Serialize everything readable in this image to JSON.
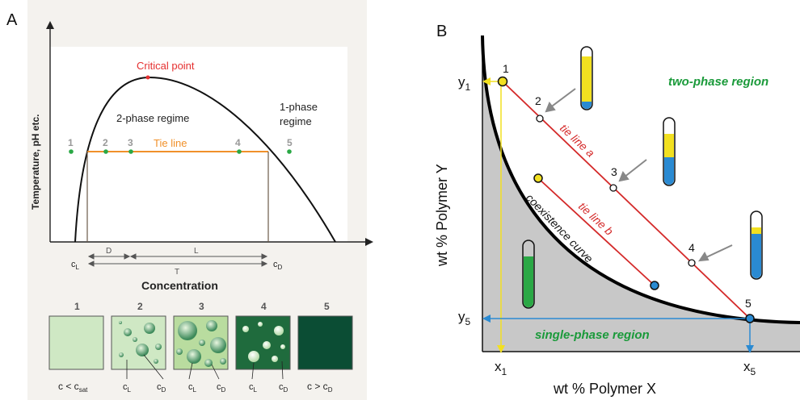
{
  "panel_a": {
    "letter": "A",
    "ylabel": "Temperature, pH etc.",
    "xlabel": "Concentration",
    "critical_point": "Critical point",
    "two_phase": "2-phase regime",
    "one_phase_line1": "1-phase",
    "one_phase_line2": "regime",
    "tie_line": "Tie line",
    "points": [
      "1",
      "2",
      "3",
      "4",
      "5"
    ],
    "dim_D": "D",
    "dim_L": "L",
    "dim_T": "T",
    "cL": "c",
    "cL_sub": "L",
    "cD": "c",
    "cD_sub": "D",
    "boxes": [
      {
        "num": "1",
        "label": "c < c",
        "sub": "sat"
      },
      {
        "num": "2",
        "labels": [
          {
            "t": "c",
            "s": "L"
          },
          {
            "t": "c",
            "s": "D"
          }
        ]
      },
      {
        "num": "3",
        "labels": [
          {
            "t": "c",
            "s": "L"
          },
          {
            "t": "c",
            "s": "D"
          }
        ]
      },
      {
        "num": "4",
        "labels": [
          {
            "t": "c",
            "s": "L"
          },
          {
            "t": "c",
            "s": "D"
          }
        ]
      },
      {
        "num": "5",
        "label": "c > c",
        "sub": "D"
      }
    ],
    "colors": {
      "tie": "#f0902a",
      "curve": "#111111",
      "point": "#2aa845",
      "critical": "#e53030",
      "box1": "#cfe8c4",
      "box5": "#0b4d34"
    }
  },
  "panel_b": {
    "letter": "B",
    "ylabel": "wt % Polymer Y",
    "xlabel": "wt % Polymer X",
    "two_phase": "two-phase region",
    "single_phase": "single-phase region",
    "tie_a": "tie line a",
    "tie_b": "tie line b",
    "coexistence": "coexistence curve",
    "points": [
      "1",
      "2",
      "3",
      "4",
      "5"
    ],
    "y1": "y",
    "y1_sub": "1",
    "y5": "y",
    "y5_sub": "5",
    "x1": "x",
    "x1_sub": "1",
    "x5": "x",
    "x5_sub": "5",
    "colors": {
      "tie": "#d42a2a",
      "region_label": "#1a9a3a",
      "shade": "#c8c8c8",
      "yellow": "#f2e020",
      "blue": "#2a8ad2",
      "green": "#2aa845"
    }
  }
}
